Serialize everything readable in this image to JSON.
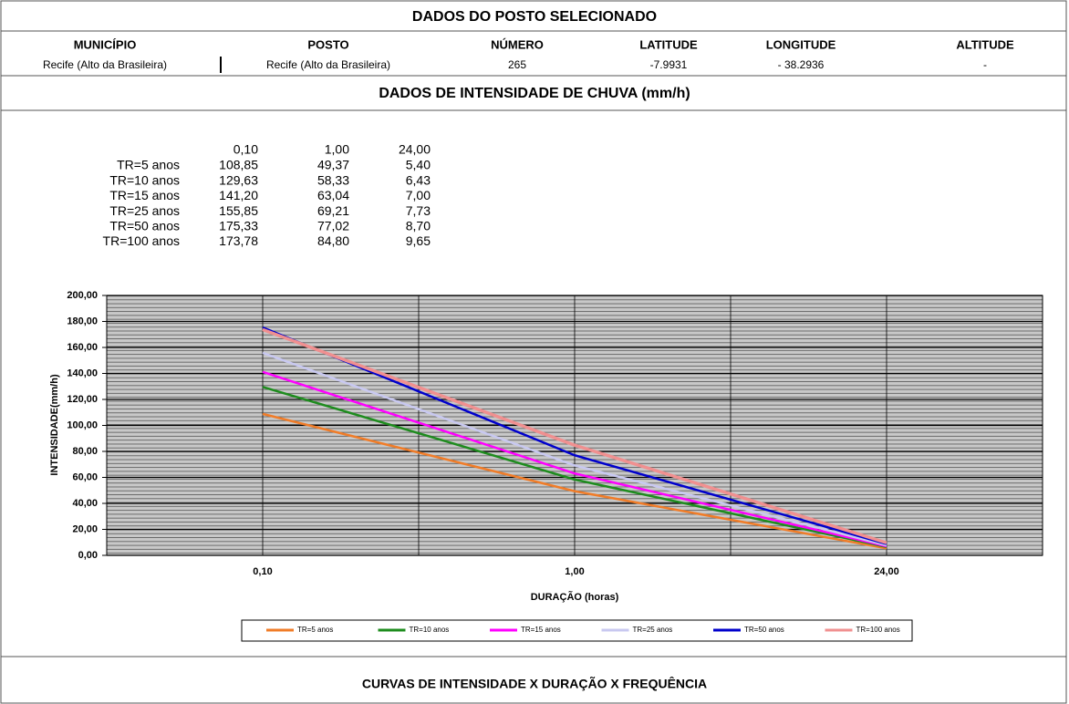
{
  "header": {
    "title": "DADOS DO POSTO SELECIONADO"
  },
  "station": {
    "columns": [
      "MUNICÍPIO",
      "POSTO",
      "NÚMERO",
      "LATITUDE",
      "LONGITUDE",
      "ALTITUDE"
    ],
    "values": [
      "Recife (Alto da Brasileira)",
      "Recife (Alto da Brasileira)",
      "265",
      "-7.9931",
      "- 38.2936",
      "-"
    ]
  },
  "section_title": "DADOS DE INTENSIDADE DE CHUVA (mm/h)",
  "intensity_table": {
    "header": [
      "0,10",
      "1,00",
      "24,00"
    ],
    "rows": [
      [
        "108,85",
        "49,37",
        "5,40"
      ],
      [
        "129,63",
        "58,33",
        "6,43"
      ],
      [
        "141,20",
        "63,04",
        "7,00"
      ],
      [
        "155,85",
        "69,21",
        "7,73"
      ],
      [
        "175,33",
        "77,02",
        "8,70"
      ],
      [
        "173,78",
        "84,80",
        "9,65"
      ]
    ]
  },
  "chart_data": {
    "type": "line",
    "xlabel": "DURAÇÃO  (horas)",
    "ylabel": "INTENSIDADE(mm/h)",
    "categories": [
      "0,10",
      "1,00",
      "24,00"
    ],
    "series": [
      {
        "name": "TR=5 anos",
        "color": "#f07c28",
        "values": [
          108.85,
          49.37,
          5.4
        ]
      },
      {
        "name": "TR=10 anos",
        "color": "#1e8c1e",
        "values": [
          129.63,
          58.33,
          6.43
        ]
      },
      {
        "name": "TR=15 anos",
        "color": "#ff00ff",
        "values": [
          141.2,
          63.04,
          7.0
        ]
      },
      {
        "name": "TR=25 anos",
        "color": "#c8c8f0",
        "values": [
          155.85,
          69.21,
          7.73
        ]
      },
      {
        "name": "TR=50 anos",
        "color": "#0000cc",
        "values": [
          175.33,
          77.02,
          8.7
        ]
      },
      {
        "name": "TR=100 anos",
        "color": "#f09090",
        "values": [
          173.78,
          84.8,
          9.65
        ]
      }
    ],
    "ylim": [
      0,
      200
    ],
    "yticks": [
      {
        "value": 0,
        "label": "0,00"
      },
      {
        "value": 20,
        "label": "20,00"
      },
      {
        "value": 40,
        "label": "40,00"
      },
      {
        "value": 60,
        "label": "60,00"
      },
      {
        "value": 80,
        "label": "80,00"
      },
      {
        "value": 100,
        "label": "100,00"
      },
      {
        "value": 120,
        "label": "120,00"
      },
      {
        "value": 140,
        "label": "140,00"
      },
      {
        "value": 160,
        "label": "160,00"
      },
      {
        "value": 180,
        "label": "180,00"
      },
      {
        "value": 200,
        "label": "200,00"
      }
    ],
    "grid": true,
    "legend": "bottom"
  },
  "footer": {
    "title": "CURVAS DE INTENSIDADE X DURAÇÃO X FREQUÊNCIA"
  }
}
